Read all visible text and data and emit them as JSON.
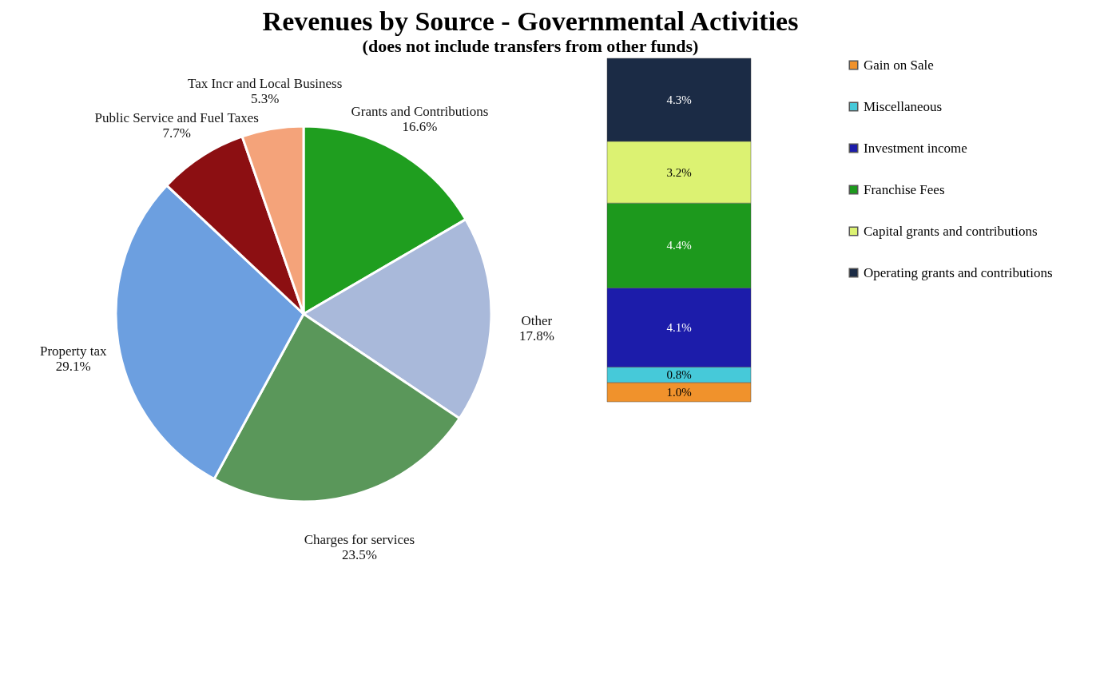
{
  "chart_data": [
    {
      "type": "pie",
      "title": "Revenues by Source - Governmental Activities",
      "subtitle": "(does not include transfers from other funds)",
      "categories": [
        "Grants and Contributions",
        "Other",
        "Charges for services",
        "Property tax",
        "Public Service and Fuel Taxes",
        "Tax Incr and Local Business"
      ],
      "values": [
        16.6,
        17.8,
        23.5,
        29.1,
        7.7,
        5.3
      ],
      "value_labels": [
        "16.6%",
        "17.8%",
        "23.5%",
        "29.1%",
        "7.7%",
        "5.3%"
      ],
      "colors": [
        "#1f9e1f",
        "#a9b9da",
        "#5a975a",
        "#6c9fe0",
        "#8c0f12",
        "#f4a37a"
      ],
      "legend": false
    },
    {
      "type": "bar",
      "stacked": true,
      "categories": [
        null
      ],
      "legend": "right",
      "series": [
        {
          "name": "Gain on Sale",
          "color": "#f0922c",
          "values": [
            1.0
          ],
          "value_labels": [
            "1.0%"
          ]
        },
        {
          "name": "Miscellaneous",
          "color": "#46c9d9",
          "values": [
            0.8
          ],
          "value_labels": [
            "0.8%"
          ]
        },
        {
          "name": "Investment income",
          "color": "#1c1caa",
          "values": [
            4.1
          ],
          "value_labels": [
            "4.1%"
          ]
        },
        {
          "name": "Franchise Fees",
          "color": "#1d991d",
          "values": [
            4.4
          ],
          "value_labels": [
            "4.4%"
          ]
        },
        {
          "name": "Capital grants and contributions",
          "color": "#dcf272",
          "values": [
            3.2
          ],
          "value_labels": [
            "3.2%"
          ]
        },
        {
          "name": "Operating grants and contributions",
          "color": "#1b2b45",
          "values": [
            4.3
          ],
          "value_labels": [
            "4.3%"
          ]
        }
      ]
    }
  ]
}
